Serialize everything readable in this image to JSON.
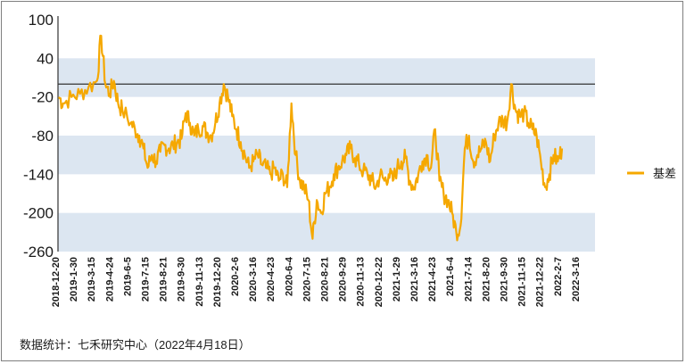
{
  "chart_data": {
    "type": "line",
    "title": "",
    "xlabel": "",
    "ylabel": "",
    "ylim": [
      -260,
      100
    ],
    "yticks": [
      100,
      40,
      -20,
      -80,
      -140,
      -200,
      -260
    ],
    "x_tick_labels": [
      "2018-12-20",
      "2019-1-30",
      "2019-3-15",
      "2019-4-24",
      "2019-6-5",
      "2019-7-15",
      "2019-8-21",
      "2019-9-30",
      "2019-11-13",
      "2019-12-20",
      "2020-2-6",
      "2020-3-16",
      "2020-4-23",
      "2020-6-4",
      "2020-7-15",
      "2020-8-21",
      "2020-9-29",
      "2020-11-13",
      "2020-12-22",
      "2021-1-29",
      "2021-3-16",
      "2021-4-23",
      "2021-6-4",
      "2021-7-14",
      "2021-8-20",
      "2021-9-30",
      "2021-11-15",
      "2021-12-22",
      "2022-2-7",
      "2022-3-16"
    ],
    "grid": "alternating horizontal bands",
    "band_color": "#dce6f1",
    "line_color": "#f5a800",
    "reference_line": 0,
    "legend_position": "right",
    "series": [
      {
        "name": "基差",
        "anchors": [
          [
            0,
            -20
          ],
          [
            1,
            -30
          ],
          [
            3,
            -20
          ],
          [
            5,
            -15
          ],
          [
            7,
            -5
          ],
          [
            9,
            5
          ],
          [
            10,
            75
          ],
          [
            11,
            0
          ],
          [
            12,
            -15
          ],
          [
            13,
            5
          ],
          [
            14,
            -30
          ],
          [
            15,
            -40
          ],
          [
            17,
            -60
          ],
          [
            18,
            -70
          ],
          [
            19,
            -80
          ],
          [
            20,
            -100
          ],
          [
            21,
            -130
          ],
          [
            22,
            -110
          ],
          [
            23,
            -120
          ],
          [
            24,
            -105
          ],
          [
            25,
            -95
          ],
          [
            26,
            -100
          ],
          [
            27,
            -95
          ],
          [
            28,
            -90
          ],
          [
            29,
            -85
          ],
          [
            30,
            -45
          ],
          [
            31,
            -60
          ],
          [
            32,
            -80
          ],
          [
            33,
            -70
          ],
          [
            34,
            -65
          ],
          [
            35,
            -75
          ],
          [
            36,
            -80
          ],
          [
            37,
            -60
          ],
          [
            38,
            -30
          ],
          [
            39,
            0
          ],
          [
            40,
            -20
          ],
          [
            41,
            -50
          ],
          [
            42,
            -70
          ],
          [
            43,
            -90
          ],
          [
            44,
            -110
          ],
          [
            45,
            -130
          ],
          [
            46,
            -120
          ],
          [
            47,
            -110
          ],
          [
            48,
            -125
          ],
          [
            49,
            -130
          ],
          [
            50,
            -140
          ],
          [
            51,
            -130
          ],
          [
            52,
            -150
          ],
          [
            53,
            -140
          ],
          [
            54,
            -160
          ],
          [
            55,
            -30
          ],
          [
            56,
            -110
          ],
          [
            57,
            -150
          ],
          [
            58,
            -160
          ],
          [
            59,
            -180
          ],
          [
            60,
            -240
          ],
          [
            61,
            -180
          ],
          [
            62,
            -200
          ],
          [
            63,
            -170
          ],
          [
            64,
            -160
          ],
          [
            65,
            -140
          ],
          [
            66,
            -130
          ],
          [
            67,
            -120
          ],
          [
            68,
            -110
          ],
          [
            69,
            -100
          ],
          [
            70,
            -115
          ],
          [
            71,
            -125
          ],
          [
            72,
            -135
          ],
          [
            73,
            -140
          ],
          [
            74,
            -150
          ],
          [
            75,
            -160
          ],
          [
            76,
            -140
          ],
          [
            77,
            -150
          ],
          [
            78,
            -140
          ],
          [
            79,
            -150
          ],
          [
            80,
            -130
          ],
          [
            81,
            -120
          ],
          [
            82,
            -115
          ],
          [
            83,
            -150
          ],
          [
            84,
            -160
          ],
          [
            85,
            -140
          ],
          [
            86,
            -120
          ],
          [
            87,
            -110
          ],
          [
            88,
            -130
          ],
          [
            89,
            -70
          ],
          [
            90,
            -150
          ],
          [
            91,
            -170
          ],
          [
            92,
            -180
          ],
          [
            93,
            -200
          ],
          [
            94,
            -230
          ],
          [
            95,
            -220
          ],
          [
            96,
            -100
          ],
          [
            97,
            -80
          ],
          [
            98,
            -120
          ],
          [
            99,
            -110
          ],
          [
            100,
            -100
          ],
          [
            101,
            -90
          ],
          [
            102,
            -120
          ],
          [
            103,
            -80
          ],
          [
            104,
            -60
          ],
          [
            105,
            -55
          ],
          [
            106,
            -60
          ],
          [
            107,
            0
          ],
          [
            108,
            -40
          ],
          [
            109,
            -50
          ],
          [
            110,
            -45
          ],
          [
            111,
            -60
          ],
          [
            112,
            -70
          ],
          [
            113,
            -80
          ],
          [
            114,
            -120
          ],
          [
            115,
            -160
          ],
          [
            116,
            -140
          ],
          [
            117,
            -110
          ],
          [
            118,
            -120
          ],
          [
            119,
            -100
          ]
        ]
      }
    ]
  },
  "source": "数据统计：七禾研究中心（2022年4月18日）"
}
